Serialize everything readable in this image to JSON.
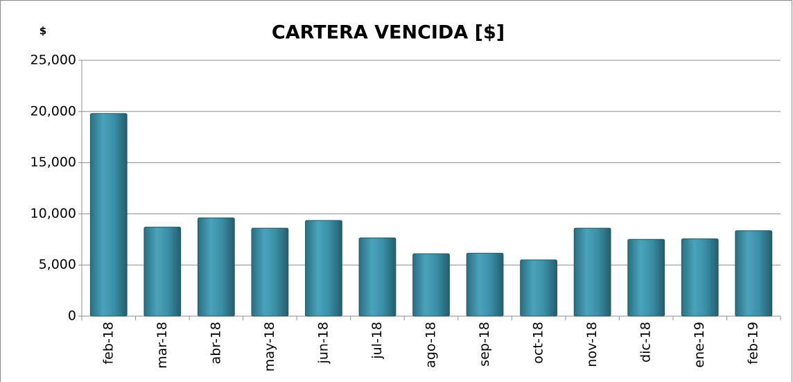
{
  "chart_data": {
    "type": "bar",
    "title": "CARTERA VENCIDA [$]",
    "y_label": "$",
    "categories": [
      "feb-18",
      "mar-18",
      "abr-18",
      "may-18",
      "jun-18",
      "jul-18",
      "ago-18",
      "sep-18",
      "oct-18",
      "nov-18",
      "dic-18",
      "ene-19",
      "feb-19"
    ],
    "values": [
      19800,
      8700,
      9600,
      8600,
      9350,
      7650,
      6100,
      6150,
      5500,
      8600,
      7500,
      7550,
      8350
    ],
    "color": "#3a8fa6",
    "ylim": [
      0,
      25000
    ],
    "yticks": [
      0,
      {
        "value": 5000,
        "label": "5,000"
      },
      {
        "value": 10000,
        "label": "10,000"
      },
      {
        "value": 15000,
        "label": "15,000"
      },
      {
        "value": 20000,
        "label": "20,000"
      },
      {
        "value": 25000,
        "label": "25,000"
      }
    ],
    "grid": true
  }
}
